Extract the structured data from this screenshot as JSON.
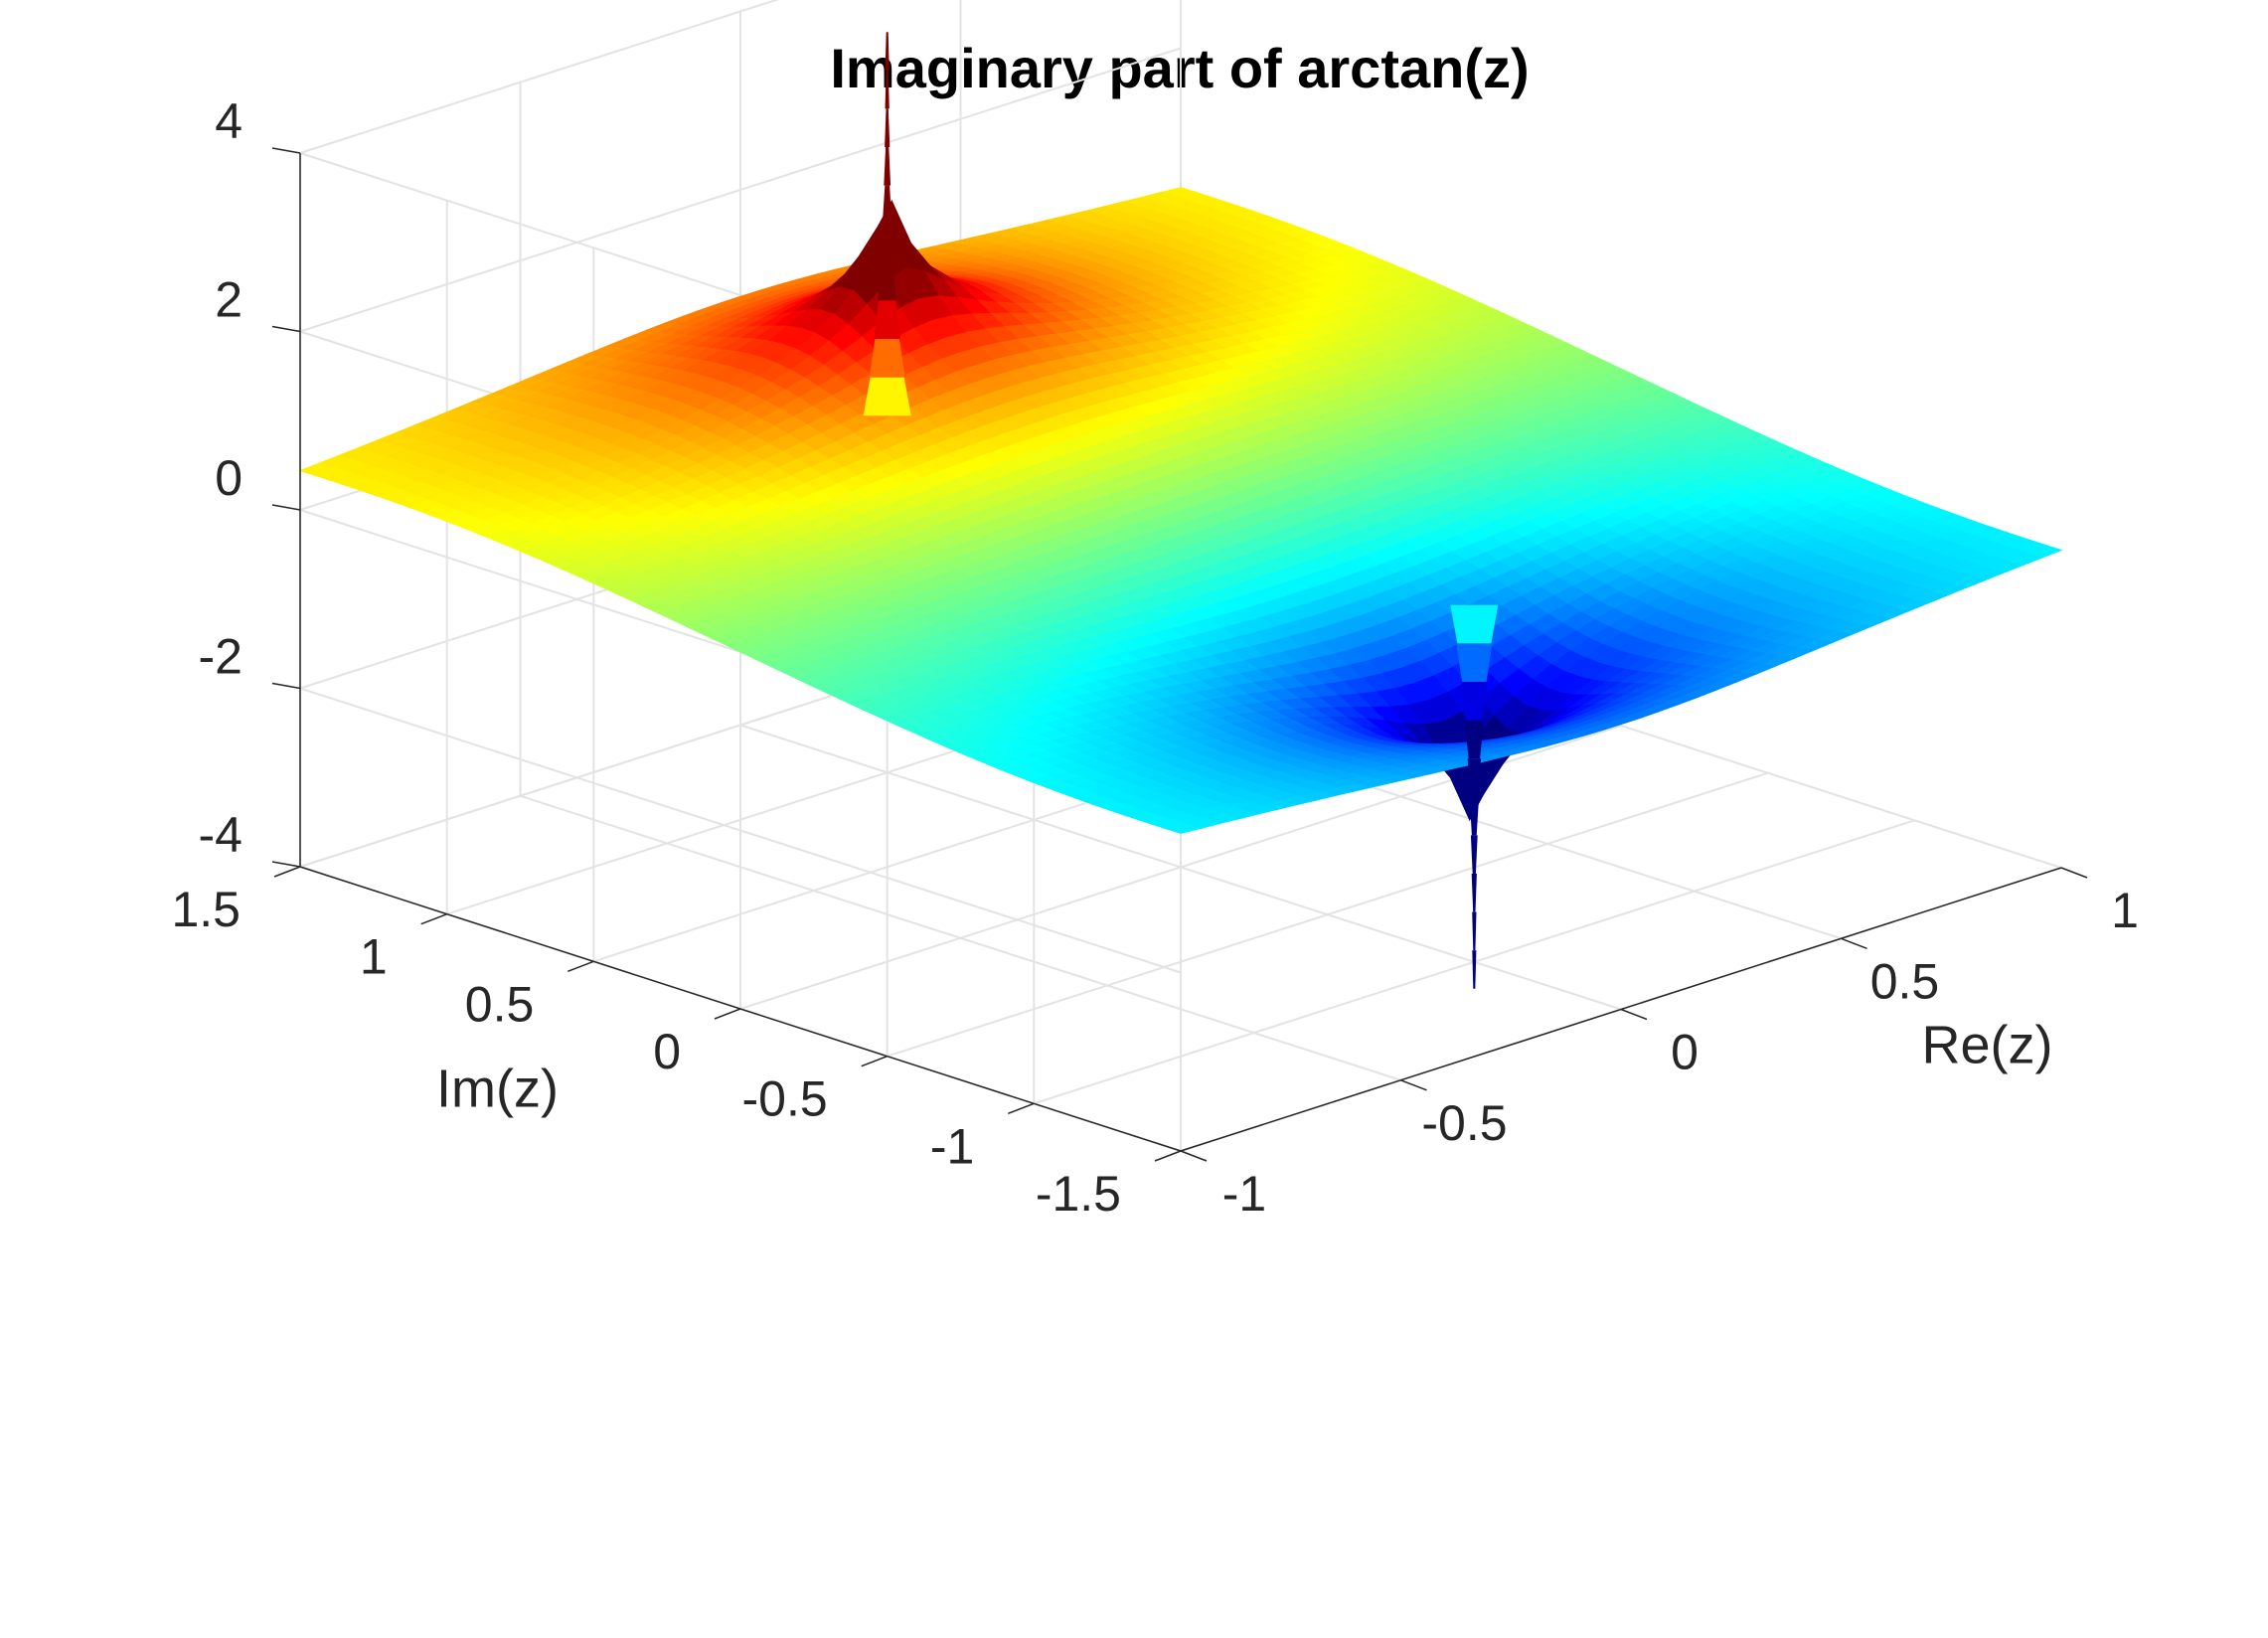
{
  "chart_data": {
    "type": "surface",
    "title": "Imaginary part of arctan(z)",
    "xlabel": "Re(z)",
    "ylabel": "Im(z)",
    "zlabel": "",
    "xlim": [
      -1,
      1
    ],
    "ylim": [
      -1.5,
      1.5
    ],
    "zlim": [
      -4,
      4
    ],
    "xticks": [
      -1,
      -0.5,
      0,
      0.5,
      1
    ],
    "xtick_labels": [
      "-1",
      "-0.5",
      "0",
      "0.5",
      "1"
    ],
    "yticks": [
      -1.5,
      -1,
      -0.5,
      0,
      0.5,
      1,
      1.5
    ],
    "ytick_labels": [
      "-1.5",
      "-1",
      "-0.5",
      "0",
      "0.5",
      "1",
      "1.5"
    ],
    "zticks": [
      -4,
      -2,
      0,
      2,
      4
    ],
    "ztick_labels": [
      "-4",
      "-2",
      "0",
      "2",
      "4"
    ],
    "grid": true,
    "colormap": "jet",
    "shading": "interp",
    "function": "imag(atan(x + i*y))",
    "singularities": [
      {
        "x": 0,
        "y": 1,
        "z_limit": "+inf",
        "color": "#ff0000"
      },
      {
        "x": 0,
        "y": -1,
        "z_limit": "-inf",
        "color": "#0000ff"
      }
    ],
    "corner_values": [
      {
        "x": -1,
        "y": -1.5,
        "z": -0.32
      },
      {
        "x": 1,
        "y": -1.5,
        "z": -0.32
      },
      {
        "x": -1,
        "y": 1.5,
        "z": 0.32
      },
      {
        "x": 1,
        "y": 1.5,
        "z": 0.32
      }
    ]
  }
}
